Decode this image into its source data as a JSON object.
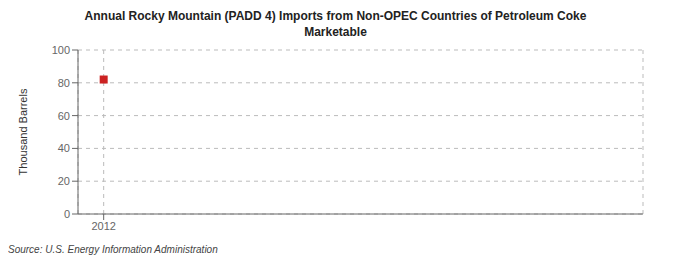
{
  "chart_data": {
    "type": "scatter",
    "title": "Annual Rocky Mountain (PADD 4) Imports from Non-OPEC Countries of Petroleum Coke\nMarketable",
    "ylabel": "Thousand Barrels",
    "source": "Source: U.S. Energy Information Administration",
    "x": [
      2012
    ],
    "values": [
      82
    ],
    "color": "#cc2222",
    "marker": "square",
    "xlim": [
      2011.5,
      2022.5
    ],
    "xticks": [
      2012
    ],
    "ylim": [
      0,
      100
    ],
    "yticks": [
      0,
      20,
      40,
      60,
      80,
      100
    ],
    "grid": true
  }
}
